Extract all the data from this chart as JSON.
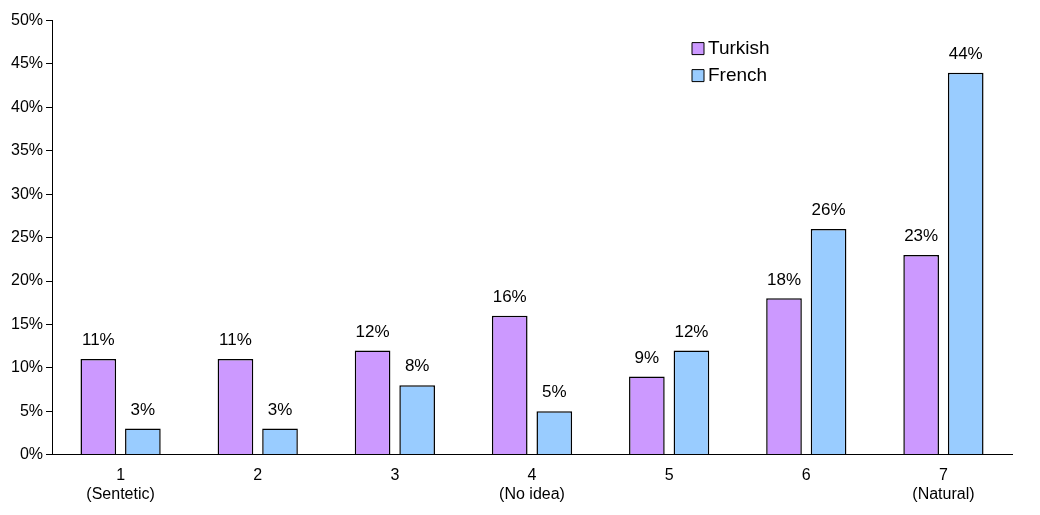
{
  "chart_data": {
    "type": "bar",
    "categories": [
      "1\n(Sentetic)",
      "2",
      "3",
      "4\n(No idea)",
      "5",
      "6",
      "7\n(Natural)"
    ],
    "series": [
      {
        "name": "Turkish",
        "color": "#cc99ff",
        "values": [
          11,
          11,
          12,
          16,
          9,
          18,
          23
        ],
        "value_labels": [
          "11%",
          "11%",
          "12%",
          "16%",
          "9%",
          "18%",
          "23%"
        ]
      },
      {
        "name": "French",
        "color": "#99ccff",
        "values": [
          3,
          3,
          8,
          5,
          12,
          26,
          44
        ],
        "value_labels": [
          "3%",
          "3%",
          "8%",
          "5%",
          "12%",
          "26%",
          "44%"
        ]
      }
    ],
    "ylim": [
      0,
      50
    ],
    "yticks": [
      {
        "value": 0,
        "label": "0%"
      },
      {
        "value": 5,
        "label": "5%"
      },
      {
        "value": 10,
        "label": "10%"
      },
      {
        "value": 15,
        "label": "15%"
      },
      {
        "value": 20,
        "label": "20%"
      },
      {
        "value": 25,
        "label": "25%"
      },
      {
        "value": 30,
        "label": "30%"
      },
      {
        "value": 35,
        "label": "35%"
      },
      {
        "value": 40,
        "label": "40%"
      },
      {
        "value": 45,
        "label": "45%"
      },
      {
        "value": 50,
        "label": "50%"
      }
    ],
    "grid": false,
    "legend": "top right"
  }
}
